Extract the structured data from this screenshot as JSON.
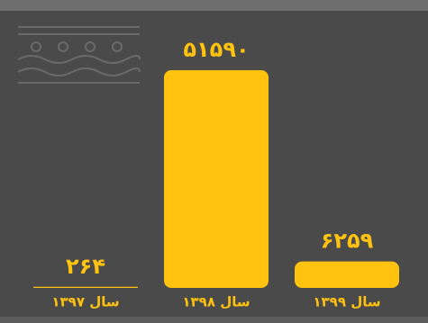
{
  "chart_data": {
    "type": "bar",
    "categories": [
      "سال ۱۳۹۷",
      "سال ۱۳۹۸",
      "سال ۱۳۹۹"
    ],
    "values": [
      264,
      51590,
      6259
    ],
    "value_labels": [
      "۲۶۴",
      "۵۱۵۹۰",
      "۶۲۵۹"
    ],
    "color": "#ffc20e"
  }
}
